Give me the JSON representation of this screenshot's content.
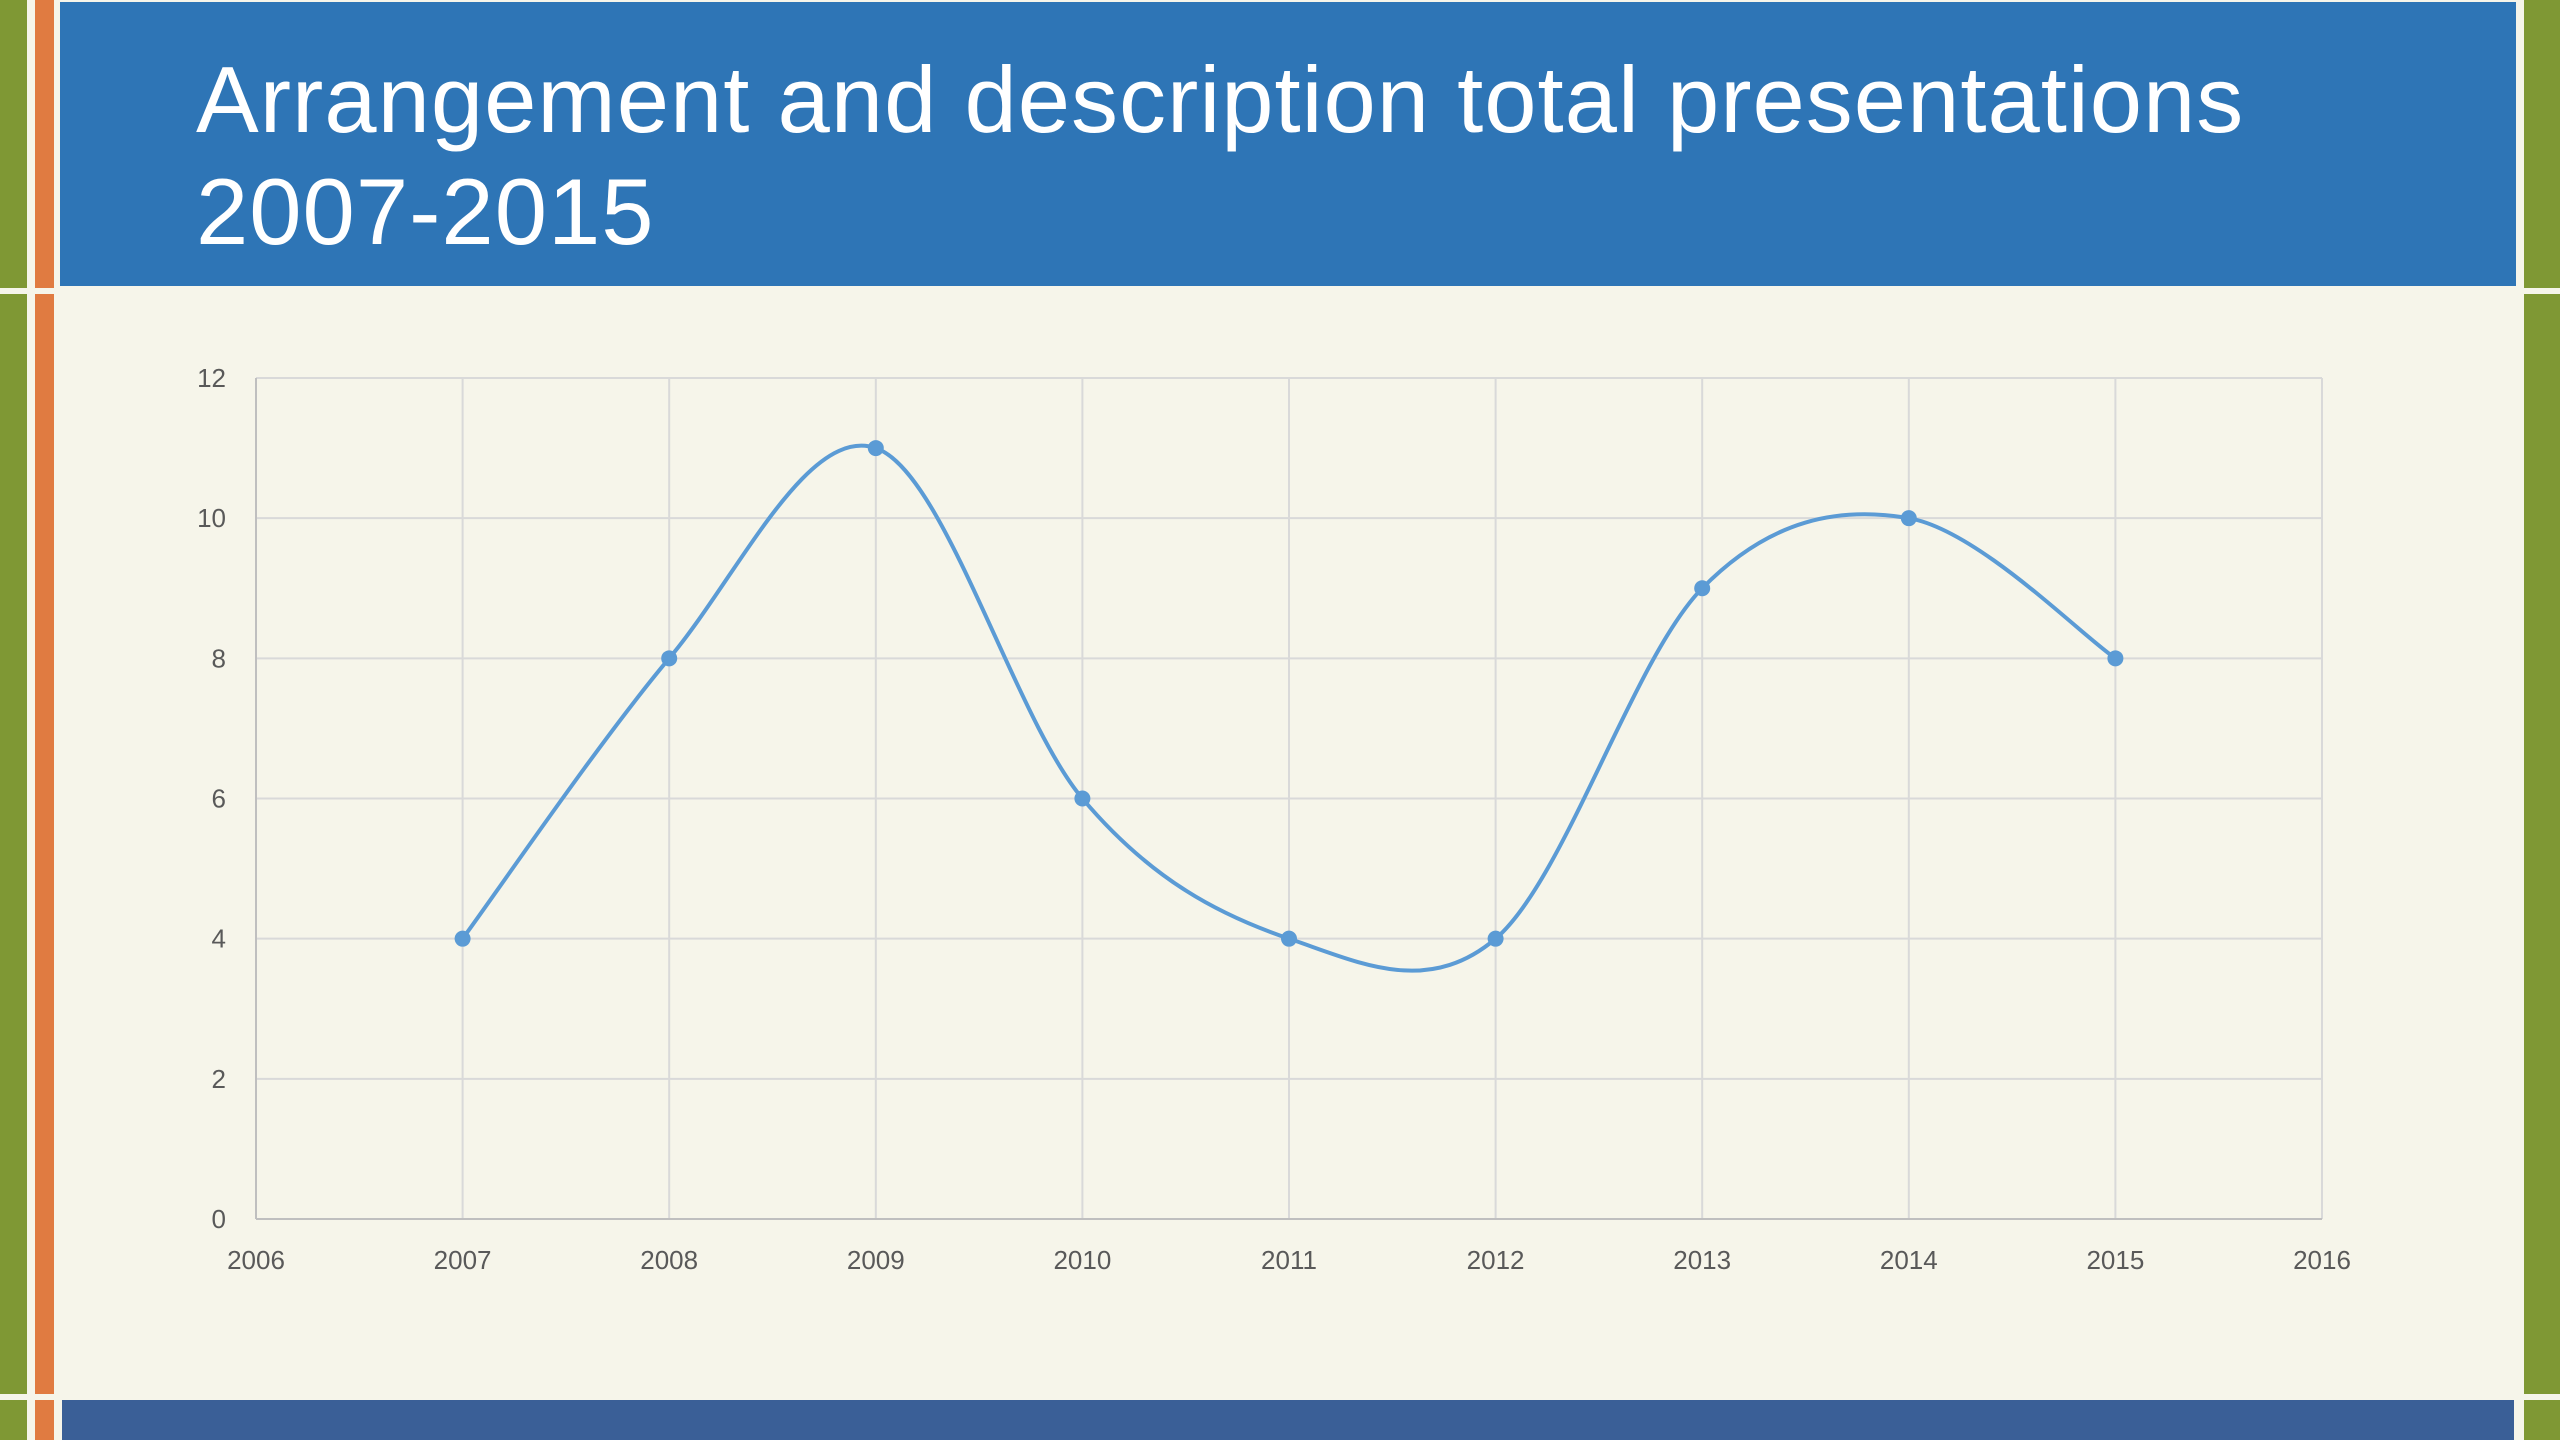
{
  "slide": {
    "title": "Arrangement and description total presentations 2007-2015"
  },
  "colors": {
    "title_bar": "#2e75b6",
    "frame_green": "#7f9834",
    "frame_orange": "#e07b41",
    "background": "#f6f5ea",
    "bottom_bar": "#3a5f97",
    "series_line": "#5b9bd5",
    "grid": "#d9d9d9"
  },
  "chart_data": {
    "type": "scatter",
    "style": "smooth line with markers",
    "title": "",
    "xlabel": "",
    "ylabel": "",
    "xlim": [
      2006,
      2016
    ],
    "ylim": [
      0,
      12
    ],
    "x_ticks": [
      "2006",
      "2007",
      "2008",
      "2009",
      "2010",
      "2011",
      "2012",
      "2013",
      "2014",
      "2015",
      "2016"
    ],
    "y_ticks": [
      "0",
      "2",
      "4",
      "6",
      "8",
      "10",
      "12"
    ],
    "grid": true,
    "legend": "none",
    "series": [
      {
        "x": [
          2007,
          2008,
          2009,
          2010,
          2011,
          2012,
          2013,
          2014,
          2015
        ],
        "y": [
          4,
          8,
          11,
          6,
          4,
          4,
          9,
          10,
          8
        ]
      }
    ]
  }
}
